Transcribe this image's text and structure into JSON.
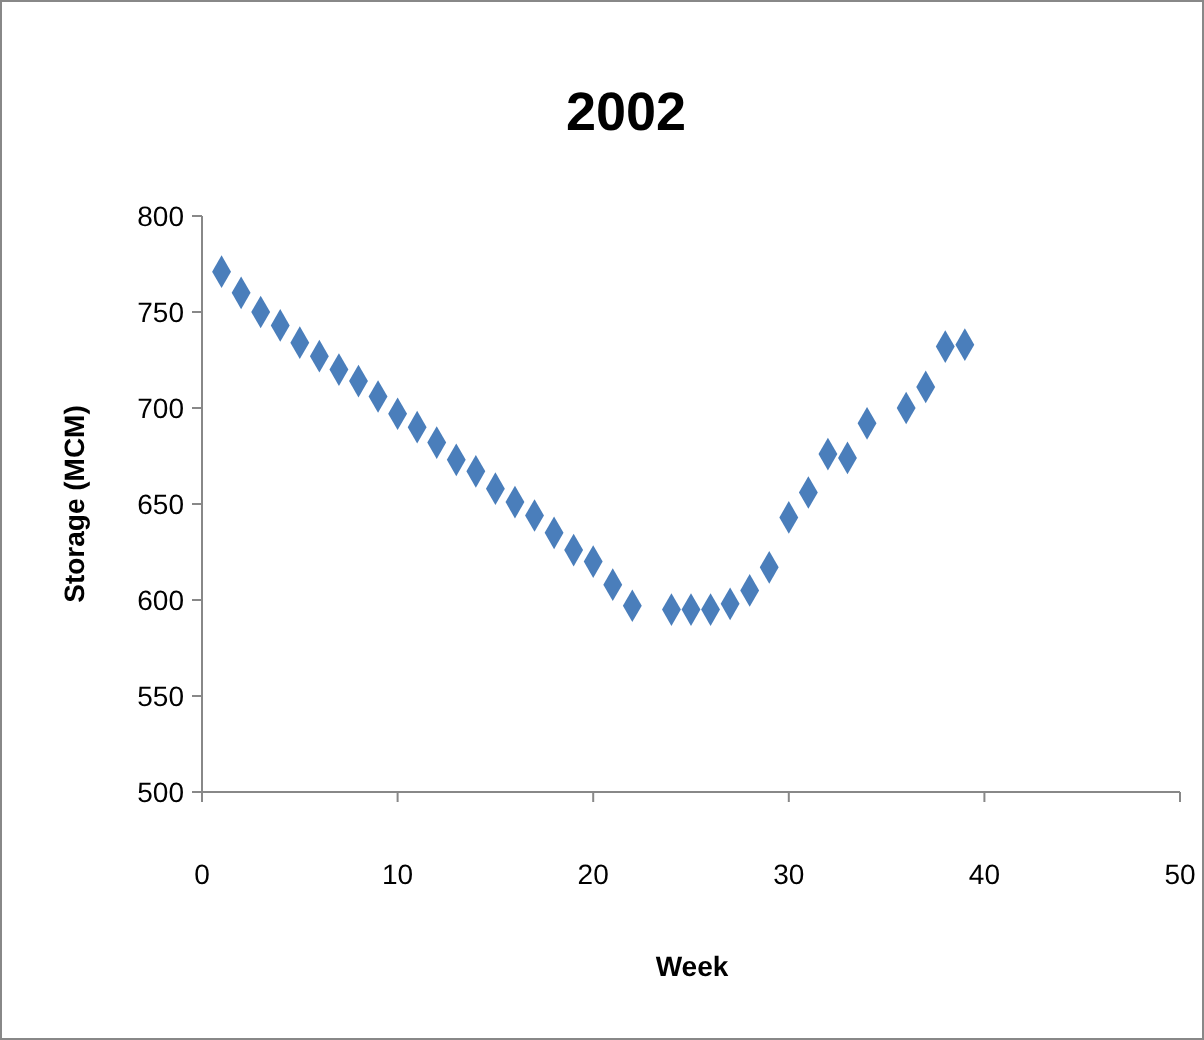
{
  "chart_data": {
    "type": "scatter",
    "title": "2002",
    "xlabel": "Week",
    "ylabel": "Storage (MCM)",
    "x": [
      1,
      2,
      3,
      4,
      5,
      6,
      7,
      8,
      9,
      10,
      11,
      12,
      13,
      14,
      15,
      16,
      17,
      18,
      19,
      20,
      21,
      22,
      24,
      25,
      26,
      27,
      28,
      29,
      30,
      31,
      32,
      33,
      34,
      36,
      37,
      38,
      39
    ],
    "series": [
      {
        "color": "#4a7ebb",
        "values": [
          771,
          760,
          750,
          743,
          734,
          727,
          720,
          714,
          706,
          697,
          690,
          682,
          673,
          667,
          658,
          651,
          644,
          635,
          626,
          620,
          608,
          597,
          595,
          595,
          595,
          598,
          605,
          617,
          643,
          656,
          676,
          674,
          692,
          700,
          711,
          732,
          733
        ]
      }
    ],
    "xlim": [
      0,
      50
    ],
    "xticks": [
      0,
      10,
      20,
      30,
      40,
      50
    ],
    "ylim": [
      500,
      800
    ],
    "yticks": [
      500,
      550,
      600,
      650,
      700,
      750,
      800
    ],
    "marker": "diamond"
  }
}
